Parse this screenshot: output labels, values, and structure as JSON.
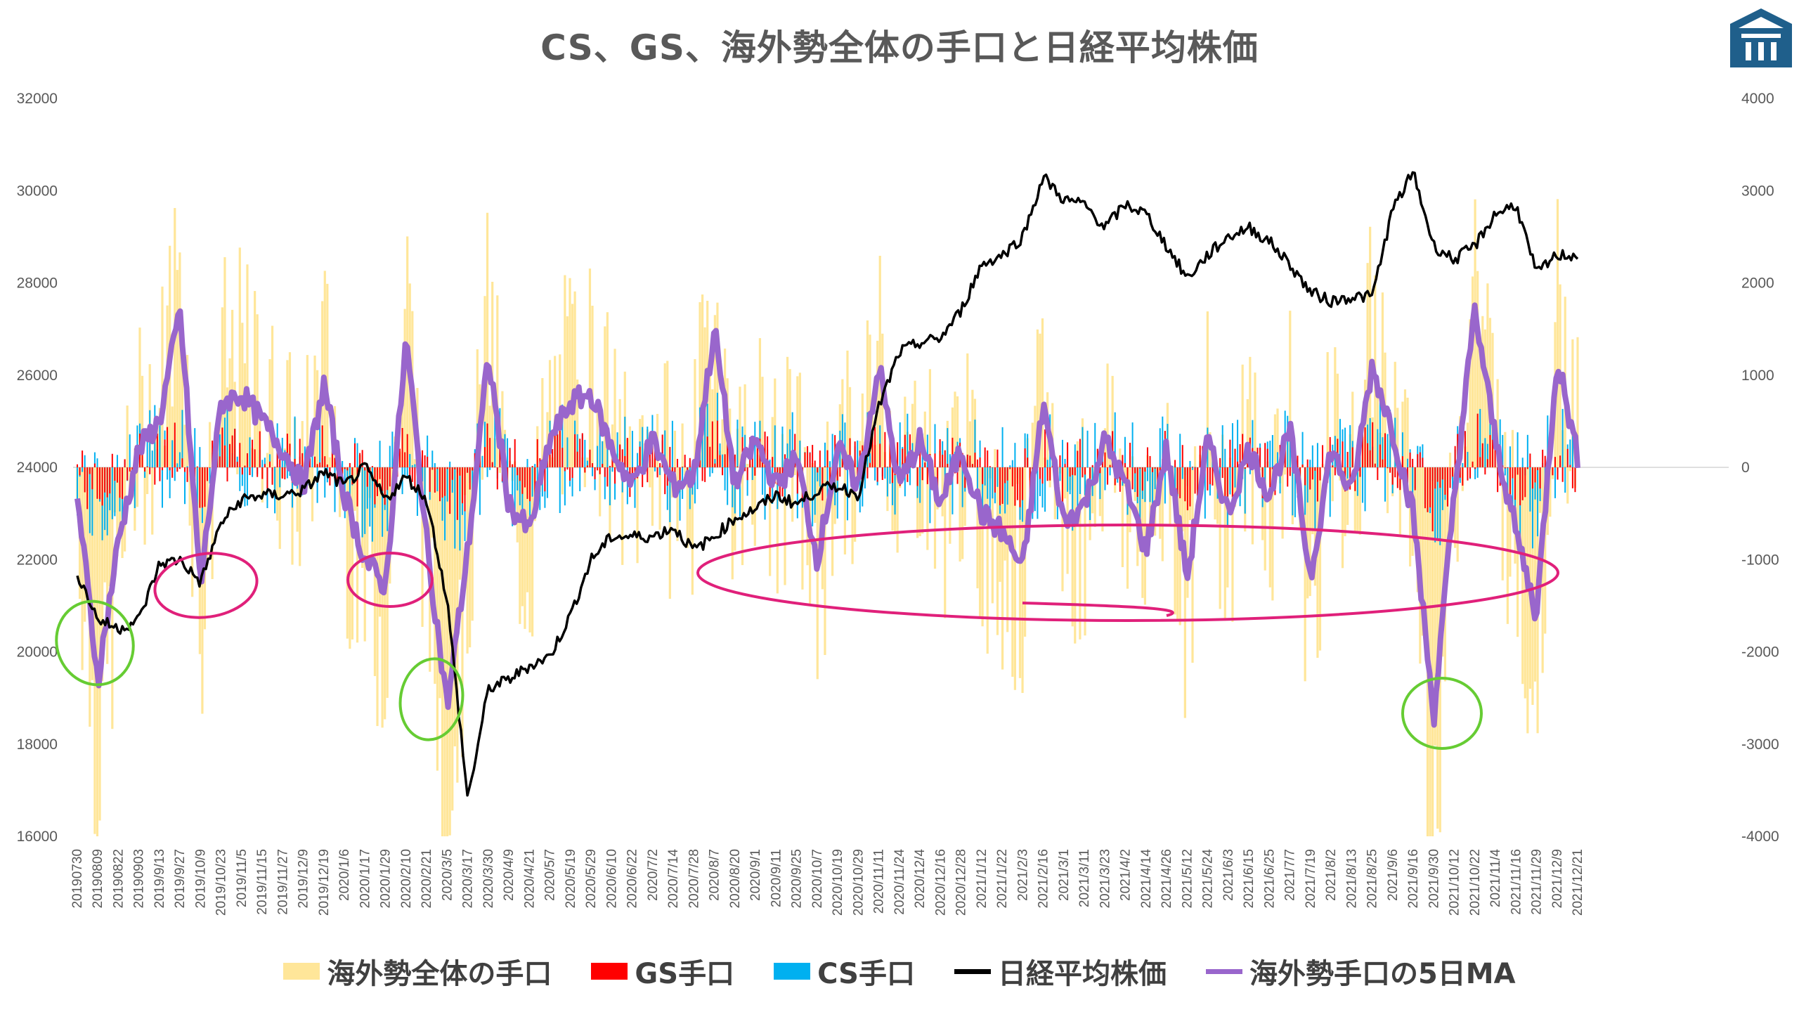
{
  "chart_data": {
    "type": "bar",
    "title": "CS、GS、海外勢全体の手口と日経平均株価",
    "xlabel": "",
    "ylabel": "",
    "ylim": [
      16000,
      32000
    ],
    "y2lim": [
      -4000,
      4000
    ],
    "left_ticks": [
      "32000",
      "30000",
      "28000",
      "26000",
      "24000",
      "22000",
      "20000",
      "18000",
      "16000"
    ],
    "right_ticks": [
      "4000",
      "3000",
      "2000",
      "1000",
      "0",
      "-1000",
      "-2000",
      "-3000",
      "-4000"
    ],
    "categories": [
      "20190730",
      "20190809",
      "20190822",
      "20190903",
      "2019/9/13",
      "2019/9/27",
      "2019/10/9",
      "2019/10/23",
      "2019/11/5",
      "2019/11/15",
      "2019/11/27",
      "2019/12/9",
      "2019/12/19",
      "2020/1/6",
      "2020/1/17",
      "2020/1/29",
      "2020/2/10",
      "2020/2/21",
      "2020/3/5",
      "2020/3/17",
      "2020/3/30",
      "2020/4/9",
      "2020/4/21",
      "2020/5/7",
      "2020/5/19",
      "2020/5/29",
      "2020/6/10",
      "2020/6/22",
      "2020/7/2",
      "2020/7/14",
      "2020/7/28",
      "2020/8/7",
      "2020/8/20",
      "2020/9/1",
      "2020/9/11",
      "2020/9/25",
      "2020/10/7",
      "2020/10/19",
      "2020/10/29",
      "2020/11/11",
      "2020/11/24",
      "2020/12/4",
      "2020/12/16",
      "2020/12/28",
      "2021/1/12",
      "2021/1/22",
      "2021/2/3",
      "2021/2/16",
      "2021/3/1",
      "2021/3/11",
      "2021/3/23",
      "2021/4/2",
      "2021/4/14",
      "2021/4/26",
      "2021/5/12",
      "2021/5/24",
      "2021/6/3",
      "2021/6/15",
      "2021/6/25",
      "2021/7/7",
      "2021/7/19",
      "2021/8/2",
      "2021/8/13",
      "2021/8/25",
      "2021/9/6",
      "2021/9/16",
      "2021/9/30",
      "2021/10/12",
      "2021/10/22",
      "2021/11/4",
      "2021/11/16",
      "2021/11/29",
      "2021/12/9",
      "2021/12/21"
    ],
    "series": [
      {
        "name": "海外勢全体の手口",
        "type": "bar",
        "axis": "right",
        "color": "#ffe699"
      },
      {
        "name": "GS手口",
        "type": "bar",
        "axis": "right",
        "color": "#ff0000"
      },
      {
        "name": "CS手口",
        "type": "bar",
        "axis": "right",
        "color": "#00b0f0"
      },
      {
        "name": "日経平均株価",
        "type": "line",
        "axis": "left",
        "color": "#000000",
        "points": [
          [
            0,
            21700
          ],
          [
            1,
            20700
          ],
          [
            2,
            20500
          ],
          [
            3,
            20700
          ],
          [
            4,
            21900
          ],
          [
            5,
            22000
          ],
          [
            6,
            21500
          ],
          [
            7,
            22800
          ],
          [
            8,
            23300
          ],
          [
            9,
            23400
          ],
          [
            10,
            23400
          ],
          [
            11,
            23500
          ],
          [
            12,
            23900
          ],
          [
            13,
            23600
          ],
          [
            14,
            24000
          ],
          [
            15,
            23300
          ],
          [
            16,
            23800
          ],
          [
            17,
            23300
          ],
          [
            18,
            21100
          ],
          [
            19,
            16800
          ],
          [
            20,
            19200
          ],
          [
            21,
            19400
          ],
          [
            22,
            19700
          ],
          [
            23,
            19900
          ],
          [
            24,
            20800
          ],
          [
            25,
            22000
          ],
          [
            26,
            22500
          ],
          [
            27,
            22500
          ],
          [
            28,
            22500
          ],
          [
            29,
            22700
          ],
          [
            30,
            22200
          ],
          [
            31,
            22500
          ],
          [
            32,
            22900
          ],
          [
            33,
            23100
          ],
          [
            34,
            23400
          ],
          [
            35,
            23200
          ],
          [
            36,
            23500
          ],
          [
            37,
            23600
          ],
          [
            38,
            23400
          ],
          [
            39,
            25300
          ],
          [
            40,
            26500
          ],
          [
            41,
            26700
          ],
          [
            42,
            26800
          ],
          [
            43,
            27400
          ],
          [
            44,
            28400
          ],
          [
            45,
            28600
          ],
          [
            46,
            29000
          ],
          [
            47,
            30300
          ],
          [
            48,
            29800
          ],
          [
            49,
            29700
          ],
          [
            50,
            29200
          ],
          [
            51,
            29700
          ],
          [
            52,
            29500
          ],
          [
            53,
            28800
          ],
          [
            54,
            28100
          ],
          [
            55,
            28600
          ],
          [
            56,
            29000
          ],
          [
            57,
            29200
          ],
          [
            58,
            28900
          ],
          [
            59,
            28400
          ],
          [
            60,
            27800
          ],
          [
            61,
            27600
          ],
          [
            62,
            27700
          ],
          [
            63,
            27700
          ],
          [
            64,
            29600
          ],
          [
            65,
            30400
          ],
          [
            66,
            28800
          ],
          [
            67,
            28500
          ],
          [
            68,
            28800
          ],
          [
            69,
            29500
          ],
          [
            70,
            29700
          ],
          [
            71,
            28200
          ],
          [
            72,
            28600
          ],
          [
            73,
            28600
          ]
        ]
      },
      {
        "name": "海外勢手口の5日MA",
        "type": "line",
        "axis": "right",
        "color": "#9966cc",
        "points": [
          [
            0,
            -300
          ],
          [
            1,
            -2300
          ],
          [
            2,
            -800
          ],
          [
            3,
            200
          ],
          [
            4,
            500
          ],
          [
            5,
            1700
          ],
          [
            6,
            -1300
          ],
          [
            7,
            700
          ],
          [
            8,
            800
          ],
          [
            9,
            500
          ],
          [
            10,
            200
          ],
          [
            11,
            -200
          ],
          [
            12,
            900
          ],
          [
            13,
            -300
          ],
          [
            14,
            -1000
          ],
          [
            15,
            -1300
          ],
          [
            16,
            1400
          ],
          [
            17,
            -800
          ],
          [
            18,
            -2600
          ],
          [
            19,
            -900
          ],
          [
            20,
            1200
          ],
          [
            21,
            -400
          ],
          [
            22,
            -700
          ],
          [
            23,
            300
          ],
          [
            24,
            700
          ],
          [
            25,
            800
          ],
          [
            26,
            200
          ],
          [
            27,
            -200
          ],
          [
            28,
            300
          ],
          [
            29,
            -200
          ],
          [
            30,
            -100
          ],
          [
            31,
            1500
          ],
          [
            32,
            -200
          ],
          [
            33,
            300
          ],
          [
            34,
            -200
          ],
          [
            35,
            100
          ],
          [
            36,
            -1000
          ],
          [
            37,
            200
          ],
          [
            38,
            -200
          ],
          [
            39,
            1100
          ],
          [
            40,
            -200
          ],
          [
            41,
            300
          ],
          [
            42,
            -400
          ],
          [
            43,
            200
          ],
          [
            44,
            -500
          ],
          [
            45,
            -700
          ],
          [
            46,
            -1100
          ],
          [
            47,
            700
          ],
          [
            48,
            -600
          ],
          [
            49,
            -400
          ],
          [
            50,
            300
          ],
          [
            51,
            -200
          ],
          [
            52,
            -900
          ],
          [
            53,
            200
          ],
          [
            54,
            -1200
          ],
          [
            55,
            300
          ],
          [
            56,
            -500
          ],
          [
            57,
            200
          ],
          [
            58,
            -300
          ],
          [
            59,
            400
          ],
          [
            60,
            -1200
          ],
          [
            61,
            200
          ],
          [
            62,
            -300
          ],
          [
            63,
            1100
          ],
          [
            64,
            400
          ],
          [
            65,
            -500
          ],
          [
            66,
            -2700
          ],
          [
            67,
            -300
          ],
          [
            68,
            1700
          ],
          [
            69,
            300
          ],
          [
            70,
            -700
          ],
          [
            71,
            -1600
          ],
          [
            72,
            1200
          ],
          [
            73,
            100
          ]
        ]
      }
    ],
    "legend_position": "bottom",
    "grid": false
  },
  "logo_icon": "building-logo-icon",
  "legend_items": [
    {
      "label": "海外勢全体の手口",
      "color": "#ffe699",
      "kind": "bar"
    },
    {
      "label": "GS手口",
      "color": "#ff0000",
      "kind": "bar"
    },
    {
      "label": "CS手口",
      "color": "#00b0f0",
      "kind": "bar"
    },
    {
      "label": "日経平均株価",
      "color": "#000000",
      "kind": "line"
    },
    {
      "label": "海外勢手口の5日MA",
      "color": "#9966cc",
      "kind": "line"
    }
  ]
}
